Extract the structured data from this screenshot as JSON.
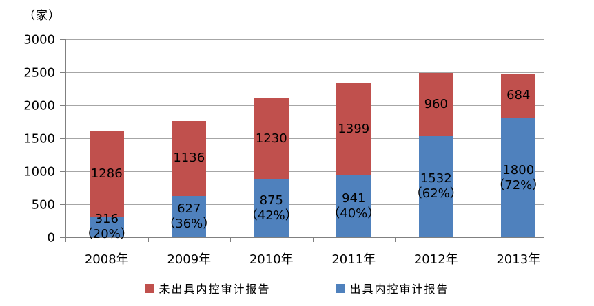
{
  "chart_data": {
    "type": "bar",
    "stacked": true,
    "title": "",
    "unit_label": "（家）",
    "categories": [
      "2008年",
      "2009年",
      "2010年",
      "2011年",
      "2012年",
      "2013年"
    ],
    "series": [
      {
        "name": "出具内控审计报告",
        "color": "#4F81BD",
        "values": [
          316,
          627,
          875,
          941,
          1532,
          1800
        ],
        "percent_labels": [
          "（20%）",
          "（36%）",
          "（42%）",
          "（40%）",
          "（62%）",
          "（72%）"
        ]
      },
      {
        "name": "未出具内控审计报告",
        "color": "#C0504D",
        "values": [
          1286,
          1136,
          1230,
          1399,
          960,
          684
        ]
      }
    ],
    "legend": [
      {
        "label": "未出具内控审计报告",
        "color": "#C0504D"
      },
      {
        "label": "出具内控审计报告",
        "color": "#4F81BD"
      }
    ],
    "ylim": [
      0,
      3000
    ],
    "yticks": [
      0,
      500,
      1000,
      1500,
      2000,
      2500,
      3000
    ],
    "grid": true,
    "legend_position": "bottom",
    "colors": {
      "axis": "#808080",
      "gridline": "#A6A6A6",
      "text": "#000000",
      "background": "#FFFFFF"
    }
  }
}
